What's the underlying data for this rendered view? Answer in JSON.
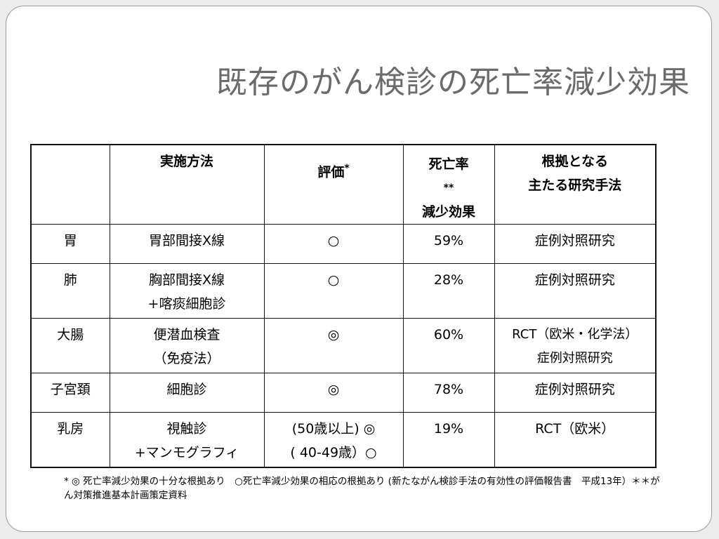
{
  "title": "既存のがん検診の死亡率減少効果",
  "table": {
    "headers": {
      "site": "",
      "method": "実施方法",
      "evaluation": "評価",
      "evaluation_sup": "*",
      "rate_line1": "死亡率",
      "rate_sup": "**",
      "rate_line2": "減少効果",
      "basis_line1": "根拠となる",
      "basis_line2": "主たる研究手法"
    },
    "rows": [
      {
        "site": "胃",
        "method": [
          "胃部間接X線"
        ],
        "evaluation": [
          "○"
        ],
        "rate": "59%",
        "basis": [
          "症例対照研究"
        ]
      },
      {
        "site": "肺",
        "method": [
          "胸部間接X線",
          "+喀痰細胞診"
        ],
        "evaluation": [
          "○"
        ],
        "rate": "28%",
        "basis": [
          "症例対照研究"
        ]
      },
      {
        "site": "大腸",
        "method": [
          "便潜血検査",
          "（免疫法）"
        ],
        "evaluation": [
          "◎"
        ],
        "rate": "60%",
        "basis": [
          "RCT（欧米・化学法）",
          "症例対照研究"
        ]
      },
      {
        "site": "子宮頚",
        "method": [
          "細胞診"
        ],
        "evaluation": [
          "◎"
        ],
        "rate": "78%",
        "basis": [
          "症例対照研究"
        ]
      },
      {
        "site": "乳房",
        "method": [
          "視触診",
          "+マンモグラフィ"
        ],
        "evaluation": [
          "(50歳以上) ◎",
          "( 40-49歳）○"
        ],
        "rate": "19%",
        "basis": [
          "RCT（欧米）"
        ]
      }
    ]
  },
  "footnote": "* ◎ 死亡率減少効果の十分な根拠あり　○死亡率減少効果の相応の根拠あり (新たながん検診手法の有効性の評価報告書　平成13年）＊＊がん対策推進基本計画策定資料",
  "colors": {
    "rate": "#ff0000",
    "title": "#6b6b6b",
    "frame_border": "#9a9a9a",
    "background": "#ececec"
  }
}
